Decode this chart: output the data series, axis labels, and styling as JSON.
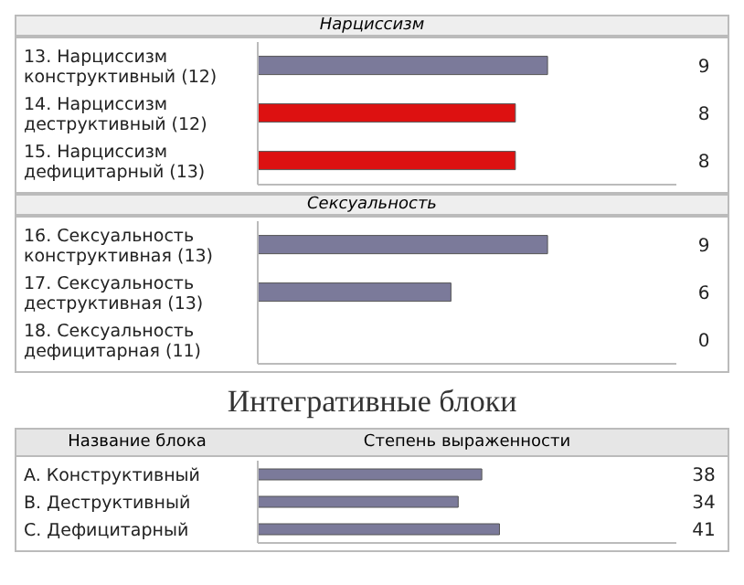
{
  "chart_data": [
    {
      "type": "bar",
      "orientation": "horizontal",
      "title": "Нарциссизм",
      "categories": [
        "13. Нарциссизм конструктивный (12)",
        "14. Нарциссизм деструктивный (12)",
        "15. Нарциссизм дефицитарный (13)"
      ],
      "values": [
        9,
        8,
        8
      ],
      "colors": [
        "#7b7a9a",
        "#dd1111",
        "#dd1111"
      ],
      "xlim": [
        0,
        13
      ],
      "tick_labels": "y",
      "data_labels": true
    },
    {
      "type": "bar",
      "orientation": "horizontal",
      "title": "Сексуальность",
      "categories": [
        "16. Сексуальность конструктивная (13)",
        "17. Сексуальность деструктивная (13)",
        "18. Сексуальность дефицитарная (11)"
      ],
      "values": [
        9,
        6,
        0
      ],
      "colors": [
        "#7b7a9a",
        "#7b7a9a",
        "#7b7a9a"
      ],
      "xlim": [
        0,
        13
      ],
      "tick_labels": "y",
      "data_labels": true
    },
    {
      "type": "bar",
      "orientation": "horizontal",
      "title": "Интегративные блоки",
      "ylabel": "Название блока",
      "xlabel": "Степень выраженности",
      "categories": [
        "A. Конструктивный",
        "B. Деструктивный",
        "C. Дефицитарный"
      ],
      "values": [
        38,
        34,
        41
      ],
      "colors": [
        "#7b7a9a",
        "#7b7a9a",
        "#7b7a9a"
      ],
      "xlim": [
        0,
        71
      ],
      "tick_labels": "y",
      "data_labels": true
    }
  ]
}
